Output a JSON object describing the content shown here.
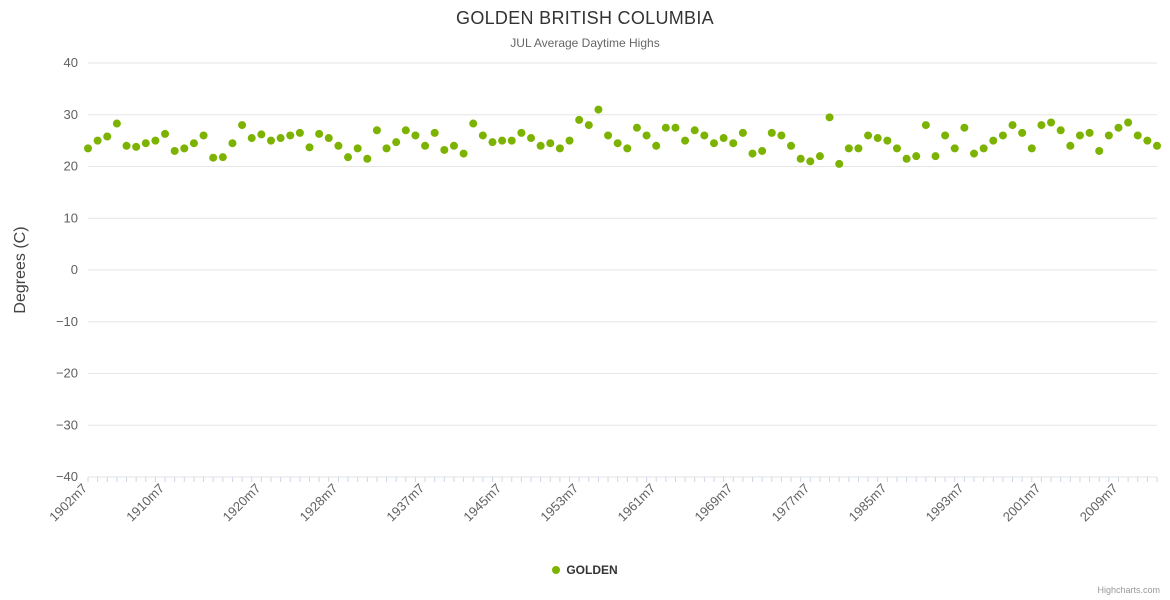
{
  "title": "GOLDEN BRITISH COLUMBIA",
  "subtitle": "JUL Average Daytime Highs",
  "credits": "Highcharts.com",
  "legend": {
    "series_label": "GOLDEN"
  },
  "colors": {
    "point": "#7cb300",
    "grid": "#e6e6e6",
    "axis_tick": "#ccd6eb",
    "axis_text": "#606060",
    "title_text": "#333333"
  },
  "chart_data": {
    "type": "scatter",
    "title": "GOLDEN BRITISH COLUMBIA",
    "subtitle": "JUL Average Daytime Highs",
    "ylabel": "Degrees (C)",
    "xlabel": "",
    "ylim": [
      -40,
      40
    ],
    "ytick_step": 10,
    "grid": true,
    "legend_position": "bottom",
    "series_name": "GOLDEN",
    "start_year": 1902,
    "x_suffix": "m7",
    "xtick_labels": [
      "1902m7",
      "1910m7",
      "1920m7",
      "1928m7",
      "1937m7",
      "1945m7",
      "1953m7",
      "1961m7",
      "1969m7",
      "1977m7",
      "1985m7",
      "1993m7",
      "2001m7",
      "2009m7"
    ],
    "values": [
      23.5,
      25.0,
      25.8,
      28.3,
      24.0,
      23.8,
      24.5,
      25.0,
      26.3,
      23.0,
      23.5,
      24.5,
      26.0,
      21.7,
      21.8,
      24.5,
      28.0,
      25.5,
      26.2,
      25.0,
      25.5,
      26.0,
      26.5,
      23.7,
      26.3,
      25.5,
      24.0,
      21.8,
      23.5,
      21.5,
      27.0,
      23.5,
      24.7,
      27.0,
      26.0,
      24.0,
      26.5,
      23.2,
      24.0,
      22.5,
      28.3,
      26.0,
      24.7,
      25.0,
      25.0,
      26.5,
      25.5,
      24.0,
      24.5,
      23.5,
      25.0,
      29.0,
      28.0,
      31.0,
      26.0,
      24.5,
      23.5,
      27.5,
      26.0,
      24.0,
      27.5,
      27.5,
      25.0,
      27.0,
      26.0,
      24.5,
      25.5,
      24.5,
      26.5,
      22.5,
      23.0,
      26.5,
      26.0,
      24.0,
      21.5,
      21.0,
      22.0,
      29.5,
      20.5,
      23.5,
      23.5,
      26.0,
      25.5,
      25.0,
      23.5,
      21.5,
      22.0,
      28.0,
      22.0,
      26.0,
      23.5,
      27.5,
      22.5,
      23.5,
      25.0,
      26.0,
      28.0,
      26.5,
      23.5,
      28.0,
      28.5,
      27.0,
      24.0,
      26.0,
      26.5,
      23.0,
      26.0,
      27.5,
      28.5,
      26.0,
      25.0,
      24.0
    ]
  }
}
